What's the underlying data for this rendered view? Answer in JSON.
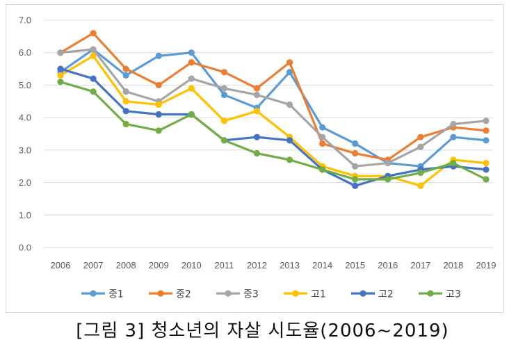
{
  "chart_data": {
    "type": "line",
    "title": "",
    "xlabel": "",
    "ylabel": "",
    "ylim": [
      0,
      7
    ],
    "y_ticks": [
      "0.0",
      "1.0",
      "2.0",
      "3.0",
      "4.0",
      "5.0",
      "6.0",
      "7.0"
    ],
    "x": [
      "2006",
      "2007",
      "2008",
      "2009",
      "2010",
      "2011",
      "2012",
      "2013",
      "2014",
      "2015",
      "2016",
      "2017",
      "2018",
      "2019"
    ],
    "grid": true,
    "legend_position": "bottom",
    "series": [
      {
        "name": "중1",
        "color": "#5b9bd5",
        "values": [
          5.4,
          6.1,
          5.3,
          5.9,
          6.0,
          4.7,
          4.3,
          5.4,
          3.7,
          3.2,
          2.6,
          2.5,
          3.4,
          3.3
        ]
      },
      {
        "name": "중2",
        "color": "#ed7d31",
        "values": [
          6.0,
          6.6,
          5.5,
          5.0,
          5.7,
          5.4,
          4.9,
          5.7,
          3.2,
          2.9,
          2.7,
          3.4,
          3.7,
          3.6
        ]
      },
      {
        "name": "중3",
        "color": "#a5a5a5",
        "values": [
          6.0,
          6.1,
          4.8,
          4.5,
          5.2,
          4.9,
          4.7,
          4.4,
          3.4,
          2.5,
          2.6,
          3.1,
          3.8,
          3.9
        ]
      },
      {
        "name": "고1",
        "color": "#ffc000",
        "values": [
          5.3,
          5.9,
          4.5,
          4.4,
          4.9,
          3.9,
          4.2,
          3.4,
          2.5,
          2.2,
          2.2,
          1.9,
          2.7,
          2.6
        ]
      },
      {
        "name": "고2",
        "color": "#4472c4",
        "values": [
          5.5,
          5.2,
          4.2,
          4.1,
          4.1,
          3.3,
          3.4,
          3.3,
          2.4,
          1.9,
          2.2,
          2.4,
          2.5,
          2.4
        ]
      },
      {
        "name": "고3",
        "color": "#70ad47",
        "values": [
          5.1,
          4.8,
          3.8,
          3.6,
          4.1,
          3.3,
          2.9,
          2.7,
          2.4,
          2.1,
          2.1,
          2.3,
          2.6,
          2.1
        ]
      }
    ]
  },
  "caption": "[그림 3] 청소년의 자살 시도율(2006~2019)"
}
